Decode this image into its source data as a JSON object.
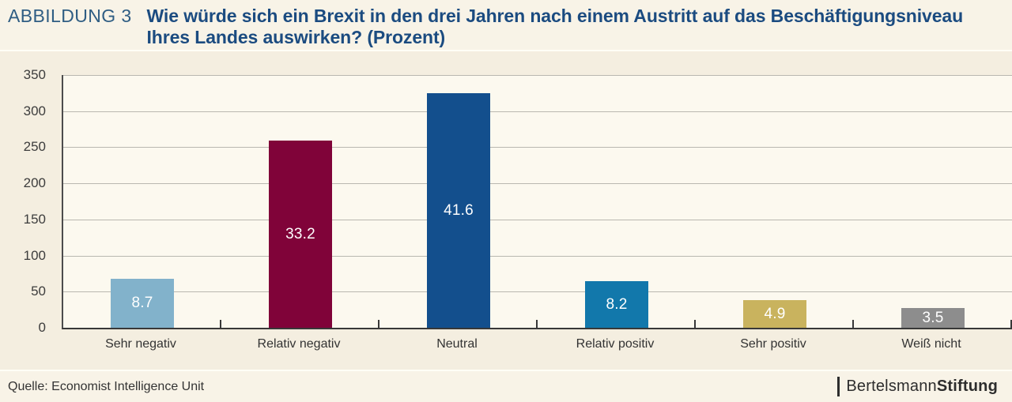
{
  "header": {
    "label": "ABBILDUNG 3",
    "title_lines": [
      "Wie würde sich ein Brexit in den drei Jahren nach einem Austritt auf das Beschäftigungsniveau",
      "Ihres Landes auswirken? (Prozent)"
    ]
  },
  "chart_data": {
    "type": "bar",
    "title": "Wie würde sich ein Brexit in den drei Jahren nach einem Austritt auf das Beschäftigungsniveau Ihres Landes auswirken? (Prozent)",
    "categories": [
      "Sehr negativ",
      "Relativ negativ",
      "Neutral",
      "Relativ positiv",
      "Sehr positiv",
      "Weiß nicht"
    ],
    "values": [
      68,
      259,
      325,
      64,
      38,
      27
    ],
    "bar_labels": [
      "8.7",
      "33.2",
      "41.6",
      "8.2",
      "4.9",
      "3.5"
    ],
    "bar_colors": [
      "#82b2cb",
      "#800339",
      "#134f8d",
      "#1278ab",
      "#c9b35e",
      "#8d8d8d"
    ],
    "xlabel": "",
    "ylabel": "",
    "ylim": [
      0,
      350
    ],
    "yticks": [
      0,
      50,
      100,
      150,
      200,
      250,
      300,
      350
    ],
    "grid": true,
    "legend": false
  },
  "footer": {
    "source": "Quelle: Economist Intelligence Unit",
    "logo": {
      "regular": "Bertelsmann",
      "bold": "Stiftung"
    }
  },
  "colors": {
    "figure_label": "#2f5d83",
    "title": "#1b4b80",
    "page_bg": "#f8f3e7",
    "chart_band_bg": "#f4eee0",
    "plot_bg": "#fcf9ef",
    "gridline": "#b9b8b0",
    "axis": "#3f3f3f",
    "bar_label_text": "#ffffff",
    "tick_label_text": "#3d3d3d",
    "footer_text": "#333333",
    "logo_text": "#2d2d2d"
  }
}
